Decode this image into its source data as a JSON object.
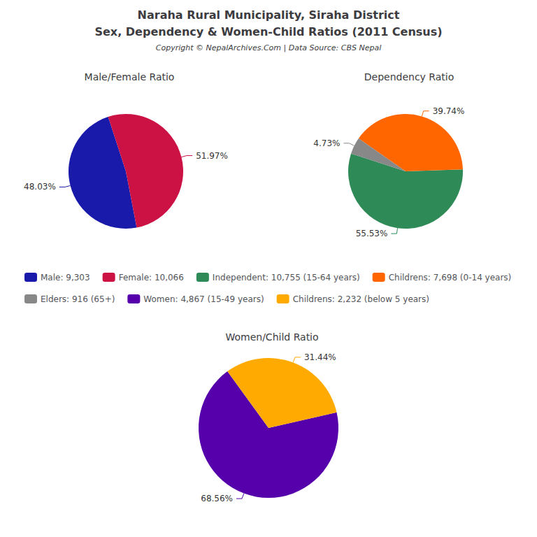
{
  "title": "Naraha Rural Municipality, Siraha District",
  "subtitle": "Sex, Dependency & Women-Child Ratios (2011 Census)",
  "annotations": [
    "Copyright © NepalArchives.Com | Data Source: CBS Nepal"
  ],
  "chart_data": [
    {
      "type": "pie",
      "title": "Male/Female Ratio",
      "categories": [
        "Male: 9,303",
        "Female: 10,066"
      ],
      "values": [
        48.03,
        51.97
      ],
      "value_labels": [
        "48.03%",
        "51.97%"
      ],
      "colors": [
        "#1a1aaa",
        "#cc1144"
      ],
      "data_labels": true,
      "legend": "center"
    },
    {
      "type": "pie",
      "title": "Dependency Ratio",
      "categories": [
        "Independent: 10,755 (15-64 years)",
        "Childrens: 7,698 (0-14 years)",
        "Elders: 916 (65+)"
      ],
      "values": [
        55.53,
        39.74,
        4.73
      ],
      "value_labels": [
        "55.53%",
        "39.74%",
        "4.73%"
      ],
      "colors": [
        "#2e8b57",
        "#ff6600",
        "#888888"
      ],
      "data_labels": true,
      "legend": "center"
    },
    {
      "type": "pie",
      "title": "Women/Child Ratio",
      "categories": [
        "Women: 4,867 (15-49 years)",
        "Childrens: 2,232 (below 5 years)"
      ],
      "values": [
        68.56,
        31.44
      ],
      "value_labels": [
        "68.56%",
        "31.44%"
      ],
      "colors": [
        "#5500aa",
        "#ffaa00"
      ],
      "data_labels": true,
      "legend": "center"
    }
  ]
}
